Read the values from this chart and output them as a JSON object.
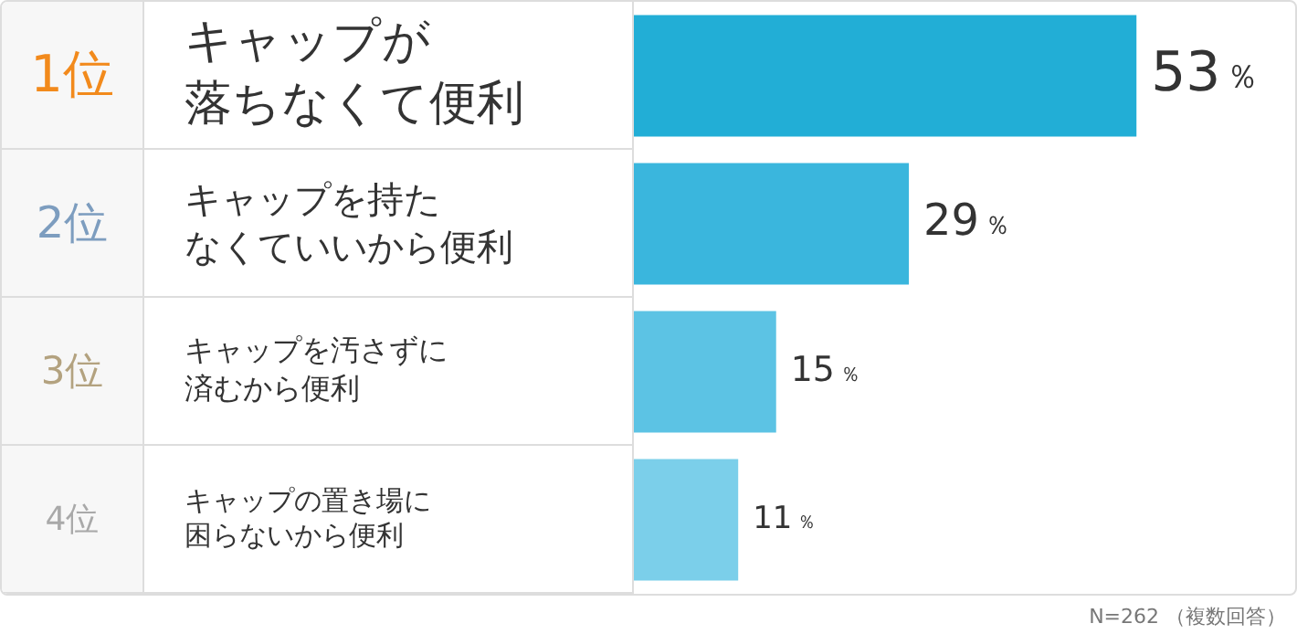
{
  "chart_data": {
    "type": "bar",
    "orientation": "horizontal",
    "categories": [
      "キャップが落ちなくて便利",
      "キャップを持たなくていいから便利",
      "キャップを汚さずに済むから便利",
      "キャップの置き場に困らないから便利"
    ],
    "values": [
      53,
      29,
      15,
      11
    ],
    "colors": [
      "#22aed6",
      "#3ab6dd",
      "#5cc3e4",
      "#7bcfea"
    ],
    "value_labels": [
      "53％",
      "29％",
      "15％",
      "11％"
    ],
    "annotations": [
      "1位",
      "2位",
      "3位",
      "4位",
      "N=262 （複数回答）"
    ]
  }
}
